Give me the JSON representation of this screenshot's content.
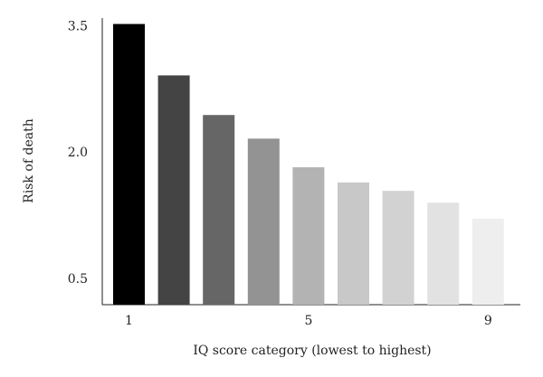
{
  "chart_data": {
    "type": "bar",
    "x_label": "IQ score category (lowest to highest)",
    "y_label": "Risk of death",
    "categories": [
      "1",
      null,
      null,
      null,
      "5",
      null,
      null,
      null,
      "9"
    ],
    "values": [
      3.53,
      2.92,
      2.45,
      2.17,
      1.83,
      1.65,
      1.55,
      1.41,
      1.22
    ],
    "colors": [
      "#000000",
      "#444444",
      "#666666",
      "#939393",
      "#b3b3b3",
      "#c8c8c8",
      "#d2d2d2",
      "#e2e2e2",
      "#eeeeee"
    ],
    "ylim": [
      0.2,
      3.6
    ],
    "yticks": [
      0.5,
      {
        "value": 2,
        "label": "2.0"
      },
      3.5
    ],
    "grid": false
  }
}
